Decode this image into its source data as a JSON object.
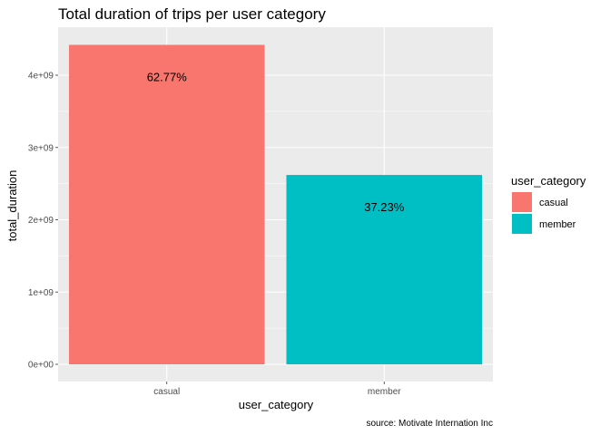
{
  "chart_data": {
    "type": "bar",
    "title": "Total duration of trips per user category",
    "xlabel": "user_category",
    "ylabel": "total_duration",
    "categories": [
      "casual",
      "member"
    ],
    "values": [
      4420000000,
      2620000000
    ],
    "data_labels": [
      "62.77%",
      "37.23%"
    ],
    "colors": [
      "#F8766D",
      "#00BFC4"
    ],
    "ylim": [
      0,
      4500000000
    ],
    "yticks": [
      0,
      1000000000,
      2000000000,
      3000000000,
      4000000000
    ],
    "ytick_labels": [
      "0e+00",
      "1e+09",
      "2e+09",
      "3e+09",
      "4e+09"
    ],
    "grid": true,
    "legend": {
      "title": "user_category",
      "position": "right",
      "items": [
        "casual",
        "member"
      ]
    },
    "caption": "source: Motivate Internation Inc"
  }
}
